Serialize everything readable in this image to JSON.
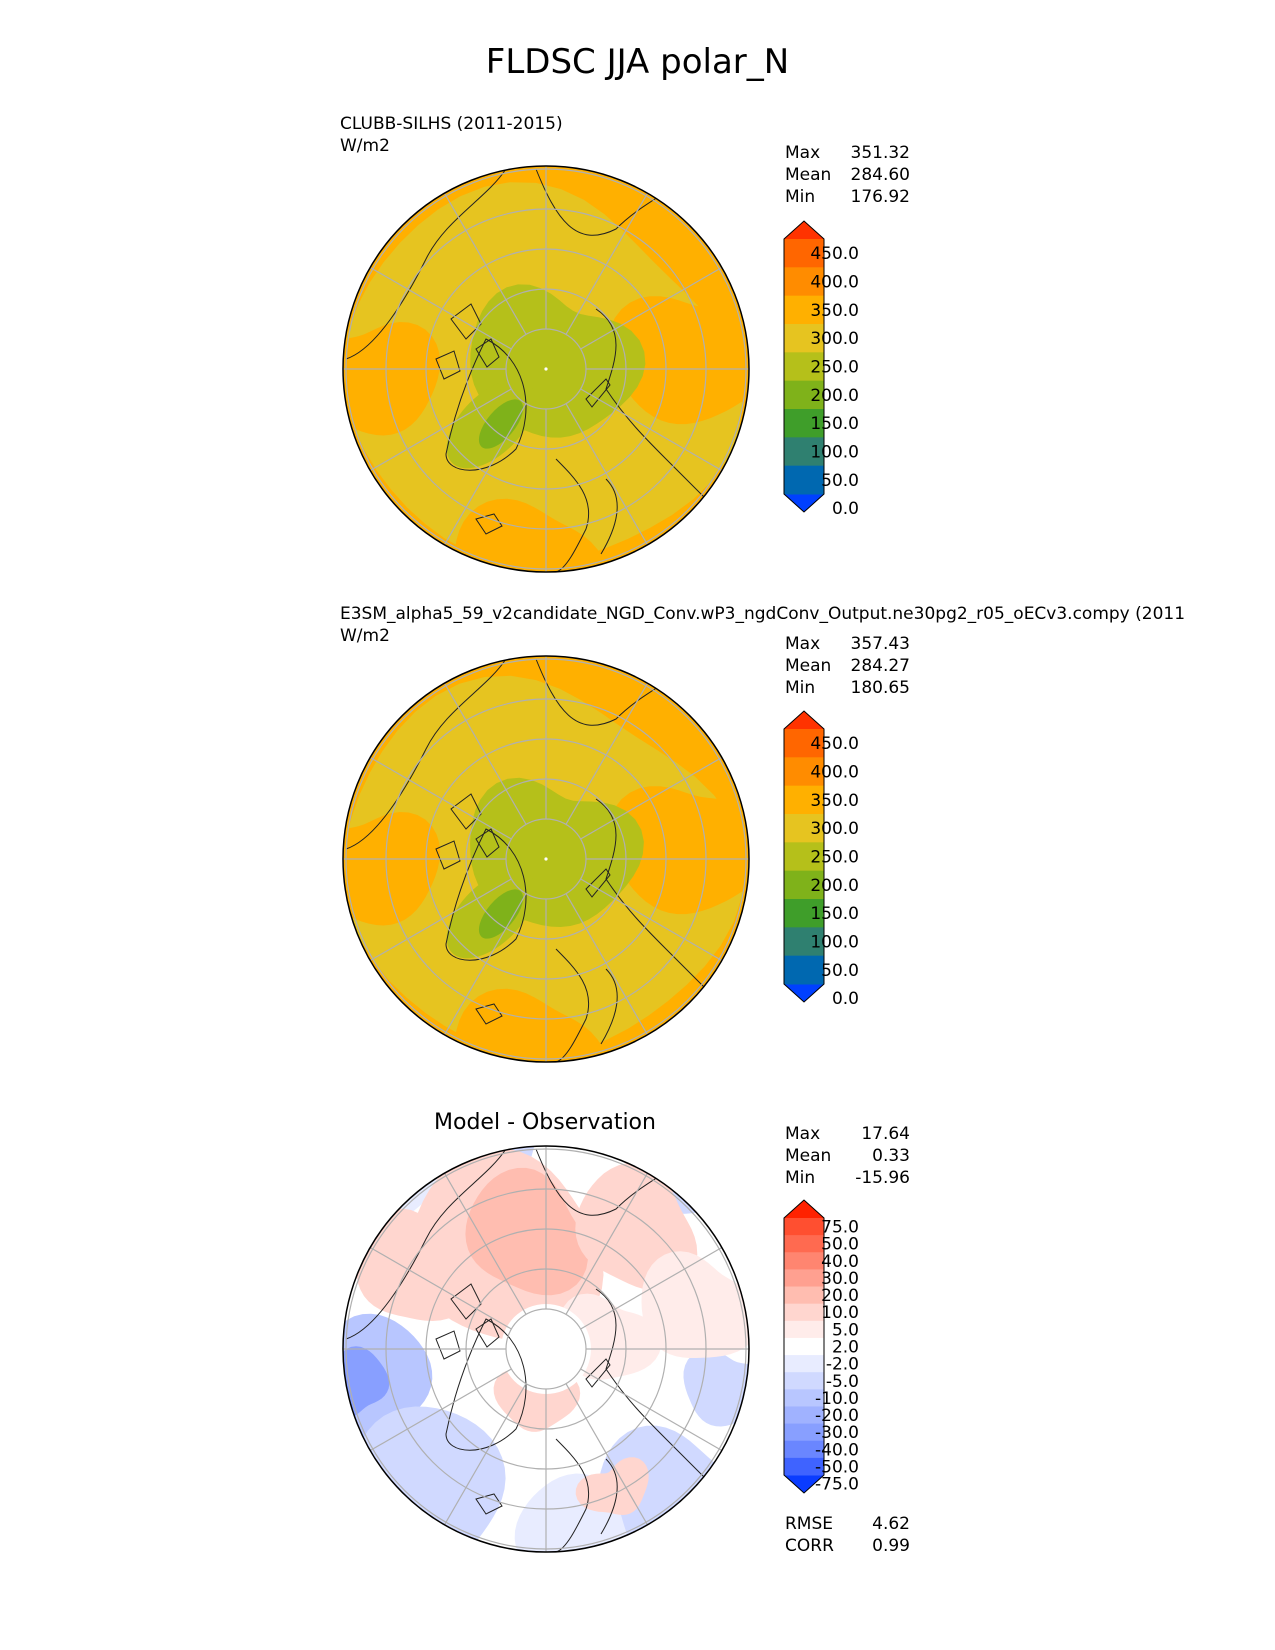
{
  "title": "FLDSC JJA polar_N",
  "panels": [
    {
      "id": "test",
      "title_left": "CLUBB-SILHS (2011-2015)",
      "units": "W/m2",
      "stats": [
        {
          "label": "Max",
          "value": "351.32"
        },
        {
          "label": "Mean",
          "value": "284.60"
        },
        {
          "label": "Min",
          "value": "176.92"
        }
      ]
    },
    {
      "id": "reference",
      "title_left": "E3SM_alpha5_59_v2candidate_NGD_Conv.wP3_ngdConv_Output.ne30pg2_r05_oECv3.compy (2011",
      "units": "W/m2",
      "stats": [
        {
          "label": "Max",
          "value": "357.43"
        },
        {
          "label": "Mean",
          "value": "284.27"
        },
        {
          "label": "Min",
          "value": "180.65"
        }
      ]
    },
    {
      "id": "difference",
      "title_center": "Model - Observation",
      "stats": [
        {
          "label": "Max",
          "value": "17.64"
        },
        {
          "label": "Mean",
          "value": "0.33"
        },
        {
          "label": "Min",
          "value": "-15.96"
        }
      ],
      "metrics": [
        {
          "label": "RMSE",
          "value": "4.62"
        },
        {
          "label": "CORR",
          "value": "0.99"
        }
      ]
    }
  ],
  "chart_data": [
    {
      "type": "heatmap",
      "projection": "north polar stereographic",
      "colorbar": {
        "ticks": [
          "450.0",
          "400.0",
          "350.0",
          "300.0",
          "250.0",
          "200.0",
          "150.0",
          "100.0",
          "50.0",
          "0.0"
        ],
        "colors": [
          "#ff3300",
          "#ff6600",
          "#ff8c00",
          "#ffb000",
          "#e6c420",
          "#b5c01a",
          "#7fb21a",
          "#3f9e2a",
          "#2f8070",
          "#0068b0",
          "#0040ff"
        ],
        "extend": "both"
      },
      "approx_field": {
        "center_range": [
          200,
          250
        ],
        "greenland_range": [
          150,
          250
        ],
        "surrounding_range": [
          250,
          300
        ],
        "outer_land_range": [
          300,
          350
        ]
      }
    },
    {
      "type": "heatmap",
      "projection": "north polar stereographic",
      "colorbar": {
        "ticks": [
          "450.0",
          "400.0",
          "350.0",
          "300.0",
          "250.0",
          "200.0",
          "150.0",
          "100.0",
          "50.0",
          "0.0"
        ],
        "colors": [
          "#ff3300",
          "#ff6600",
          "#ff8c00",
          "#ffb000",
          "#e6c420",
          "#b5c01a",
          "#7fb21a",
          "#3f9e2a",
          "#2f8070",
          "#0068b0",
          "#0040ff"
        ],
        "extend": "both"
      },
      "approx_field": {
        "center_range": [
          200,
          250
        ],
        "greenland_range": [
          150,
          250
        ],
        "surrounding_range": [
          250,
          300
        ],
        "outer_land_range": [
          300,
          350
        ]
      }
    },
    {
      "type": "heatmap",
      "projection": "north polar stereographic",
      "colorbar": {
        "ticks": [
          "75.0",
          "50.0",
          "40.0",
          "30.0",
          "20.0",
          "10.0",
          "5.0",
          "2.0",
          "-2.0",
          "-5.0",
          "-10.0",
          "-20.0",
          "-30.0",
          "-40.0",
          "-50.0",
          "-75.0"
        ],
        "colors": [
          "#ff2200",
          "#ff4f30",
          "#ff6a50",
          "#ff8570",
          "#ffa090",
          "#ffbdb0",
          "#ffd6cf",
          "#ffecea",
          "#ffffff",
          "#e8ecff",
          "#d0d9ff",
          "#b8c6ff",
          "#a0b2ff",
          "#889fff",
          "#6a86ff",
          "#3f63ff",
          "#0a3cff"
        ],
        "extend": "both"
      },
      "approx_field": {
        "positive_regions": "Siberia, Canadian Arctic, central Arctic ring",
        "negative_regions": "Europe, North Atlantic, North Pacific, Greenland west coast"
      }
    }
  ]
}
